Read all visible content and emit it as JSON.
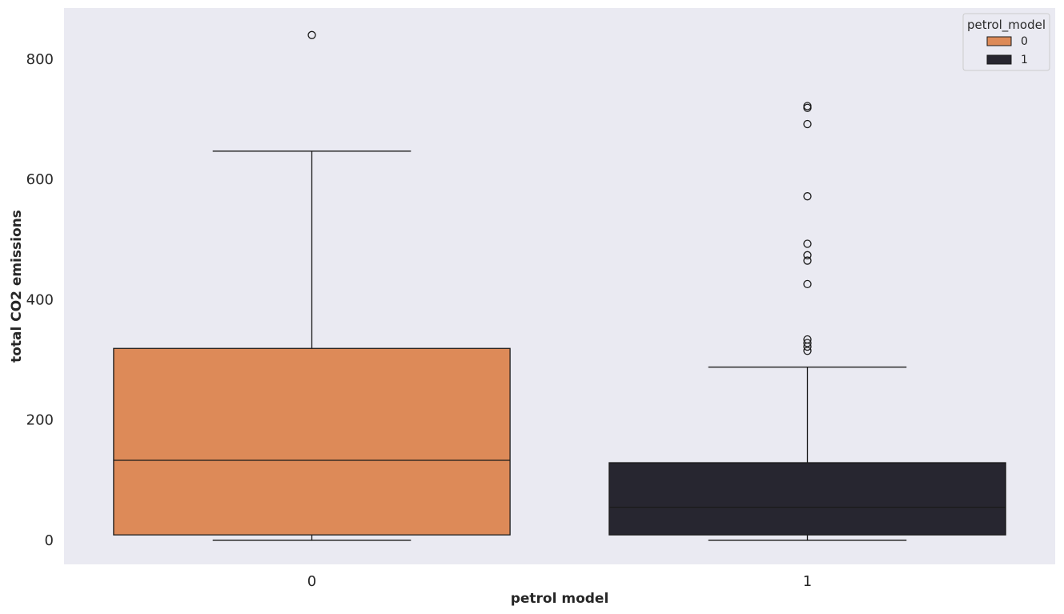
{
  "chart_data": {
    "type": "box",
    "xlabel": "petrol model",
    "ylabel": "total CO2 emissions",
    "categories": [
      "0",
      "1"
    ],
    "ylim": [
      -40,
      885
    ],
    "yticks": [
      0,
      200,
      400,
      600,
      800
    ],
    "grid": false,
    "legend": {
      "title": "petrol_model",
      "placement": "top-right",
      "entries": [
        {
          "label": "0",
          "color": "#dd8a58"
        },
        {
          "label": "1",
          "color": "#272630"
        }
      ]
    },
    "series": [
      {
        "category": "0",
        "color": "#dd8a58",
        "whisker_low": 0,
        "q1": 9,
        "median": 133,
        "q3": 319,
        "whisker_high": 647,
        "outliers": [
          840
        ]
      },
      {
        "category": "1",
        "color": "#272630",
        "whisker_low": 0,
        "q1": 9,
        "median": 55,
        "q3": 129,
        "whisker_high": 288,
        "outliers": [
          722,
          719,
          692,
          572,
          493,
          474,
          465,
          426,
          334,
          328,
          322,
          315
        ]
      }
    ],
    "colors": {
      "plot_background": "#eaeaf2",
      "box_edge": "#1a1a1a",
      "median_line_dark": "#1a1a1a"
    }
  }
}
